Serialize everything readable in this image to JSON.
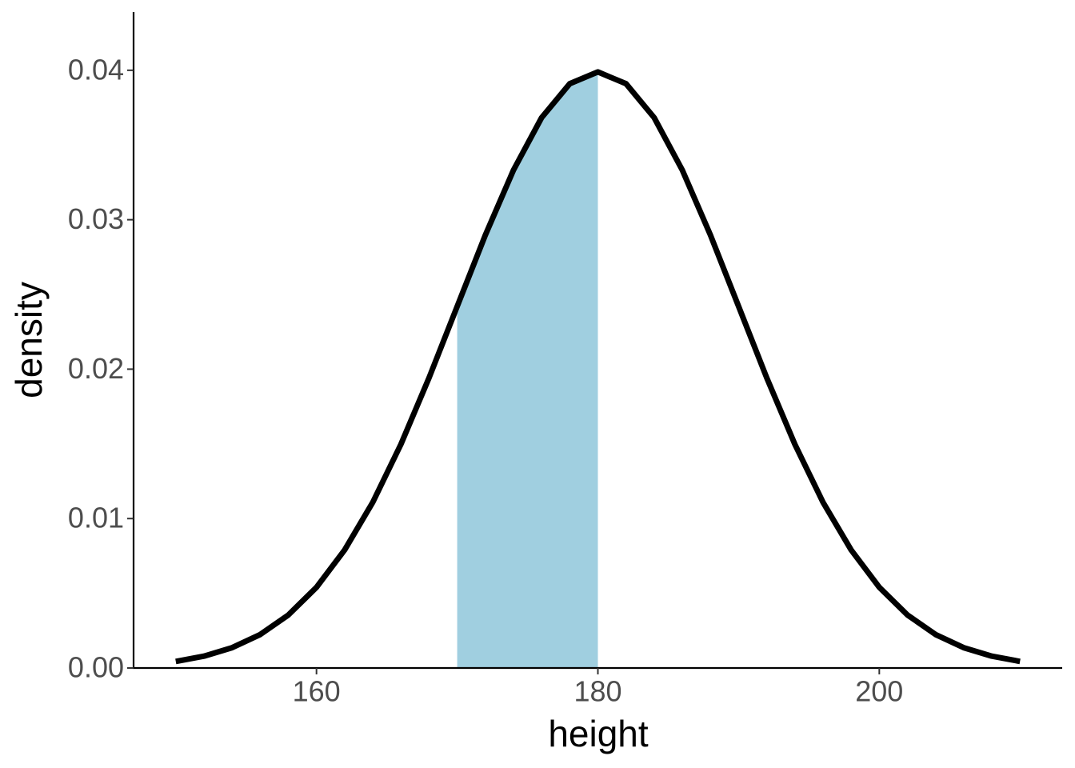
{
  "chart_data": {
    "type": "density",
    "x_label": "height",
    "y_label": "density",
    "xlim": [
      147,
      213
    ],
    "ylim": [
      0,
      0.0439
    ],
    "xticks": [
      160,
      180,
      200
    ],
    "yticks": [
      {
        "value": 0,
        "label": "0.00"
      },
      {
        "value": 0.01,
        "label": "0.01"
      },
      {
        "value": 0.02,
        "label": "0.02"
      },
      {
        "value": 0.03,
        "label": "0.03"
      },
      {
        "value": 0.04,
        "label": "0.04"
      }
    ],
    "grid": false,
    "line": {
      "color": "#000000",
      "x": [
        150,
        152,
        154,
        156,
        158,
        160,
        162,
        164,
        166,
        168,
        170,
        172,
        174,
        176,
        178,
        180,
        182,
        184,
        186,
        188,
        190,
        192,
        194,
        196,
        198,
        200,
        202,
        204,
        206,
        208,
        210
      ],
      "values": [
        0.00044,
        0.00079,
        0.00136,
        0.00224,
        0.00355,
        0.0054,
        0.0079,
        0.01109,
        0.01497,
        0.01942,
        0.0242,
        0.02897,
        0.03332,
        0.03683,
        0.0391,
        0.03989,
        0.0391,
        0.03683,
        0.03332,
        0.02897,
        0.0242,
        0.01942,
        0.01497,
        0.01109,
        0.0079,
        0.0054,
        0.00355,
        0.00224,
        0.00136,
        0.00079,
        0.00044
      ]
    },
    "area": {
      "color": "#a0cfe0",
      "x": [
        170,
        172,
        174,
        176,
        178,
        180
      ],
      "values": [
        0.0242,
        0.02897,
        0.03332,
        0.03683,
        0.0391,
        0.03989
      ]
    }
  }
}
